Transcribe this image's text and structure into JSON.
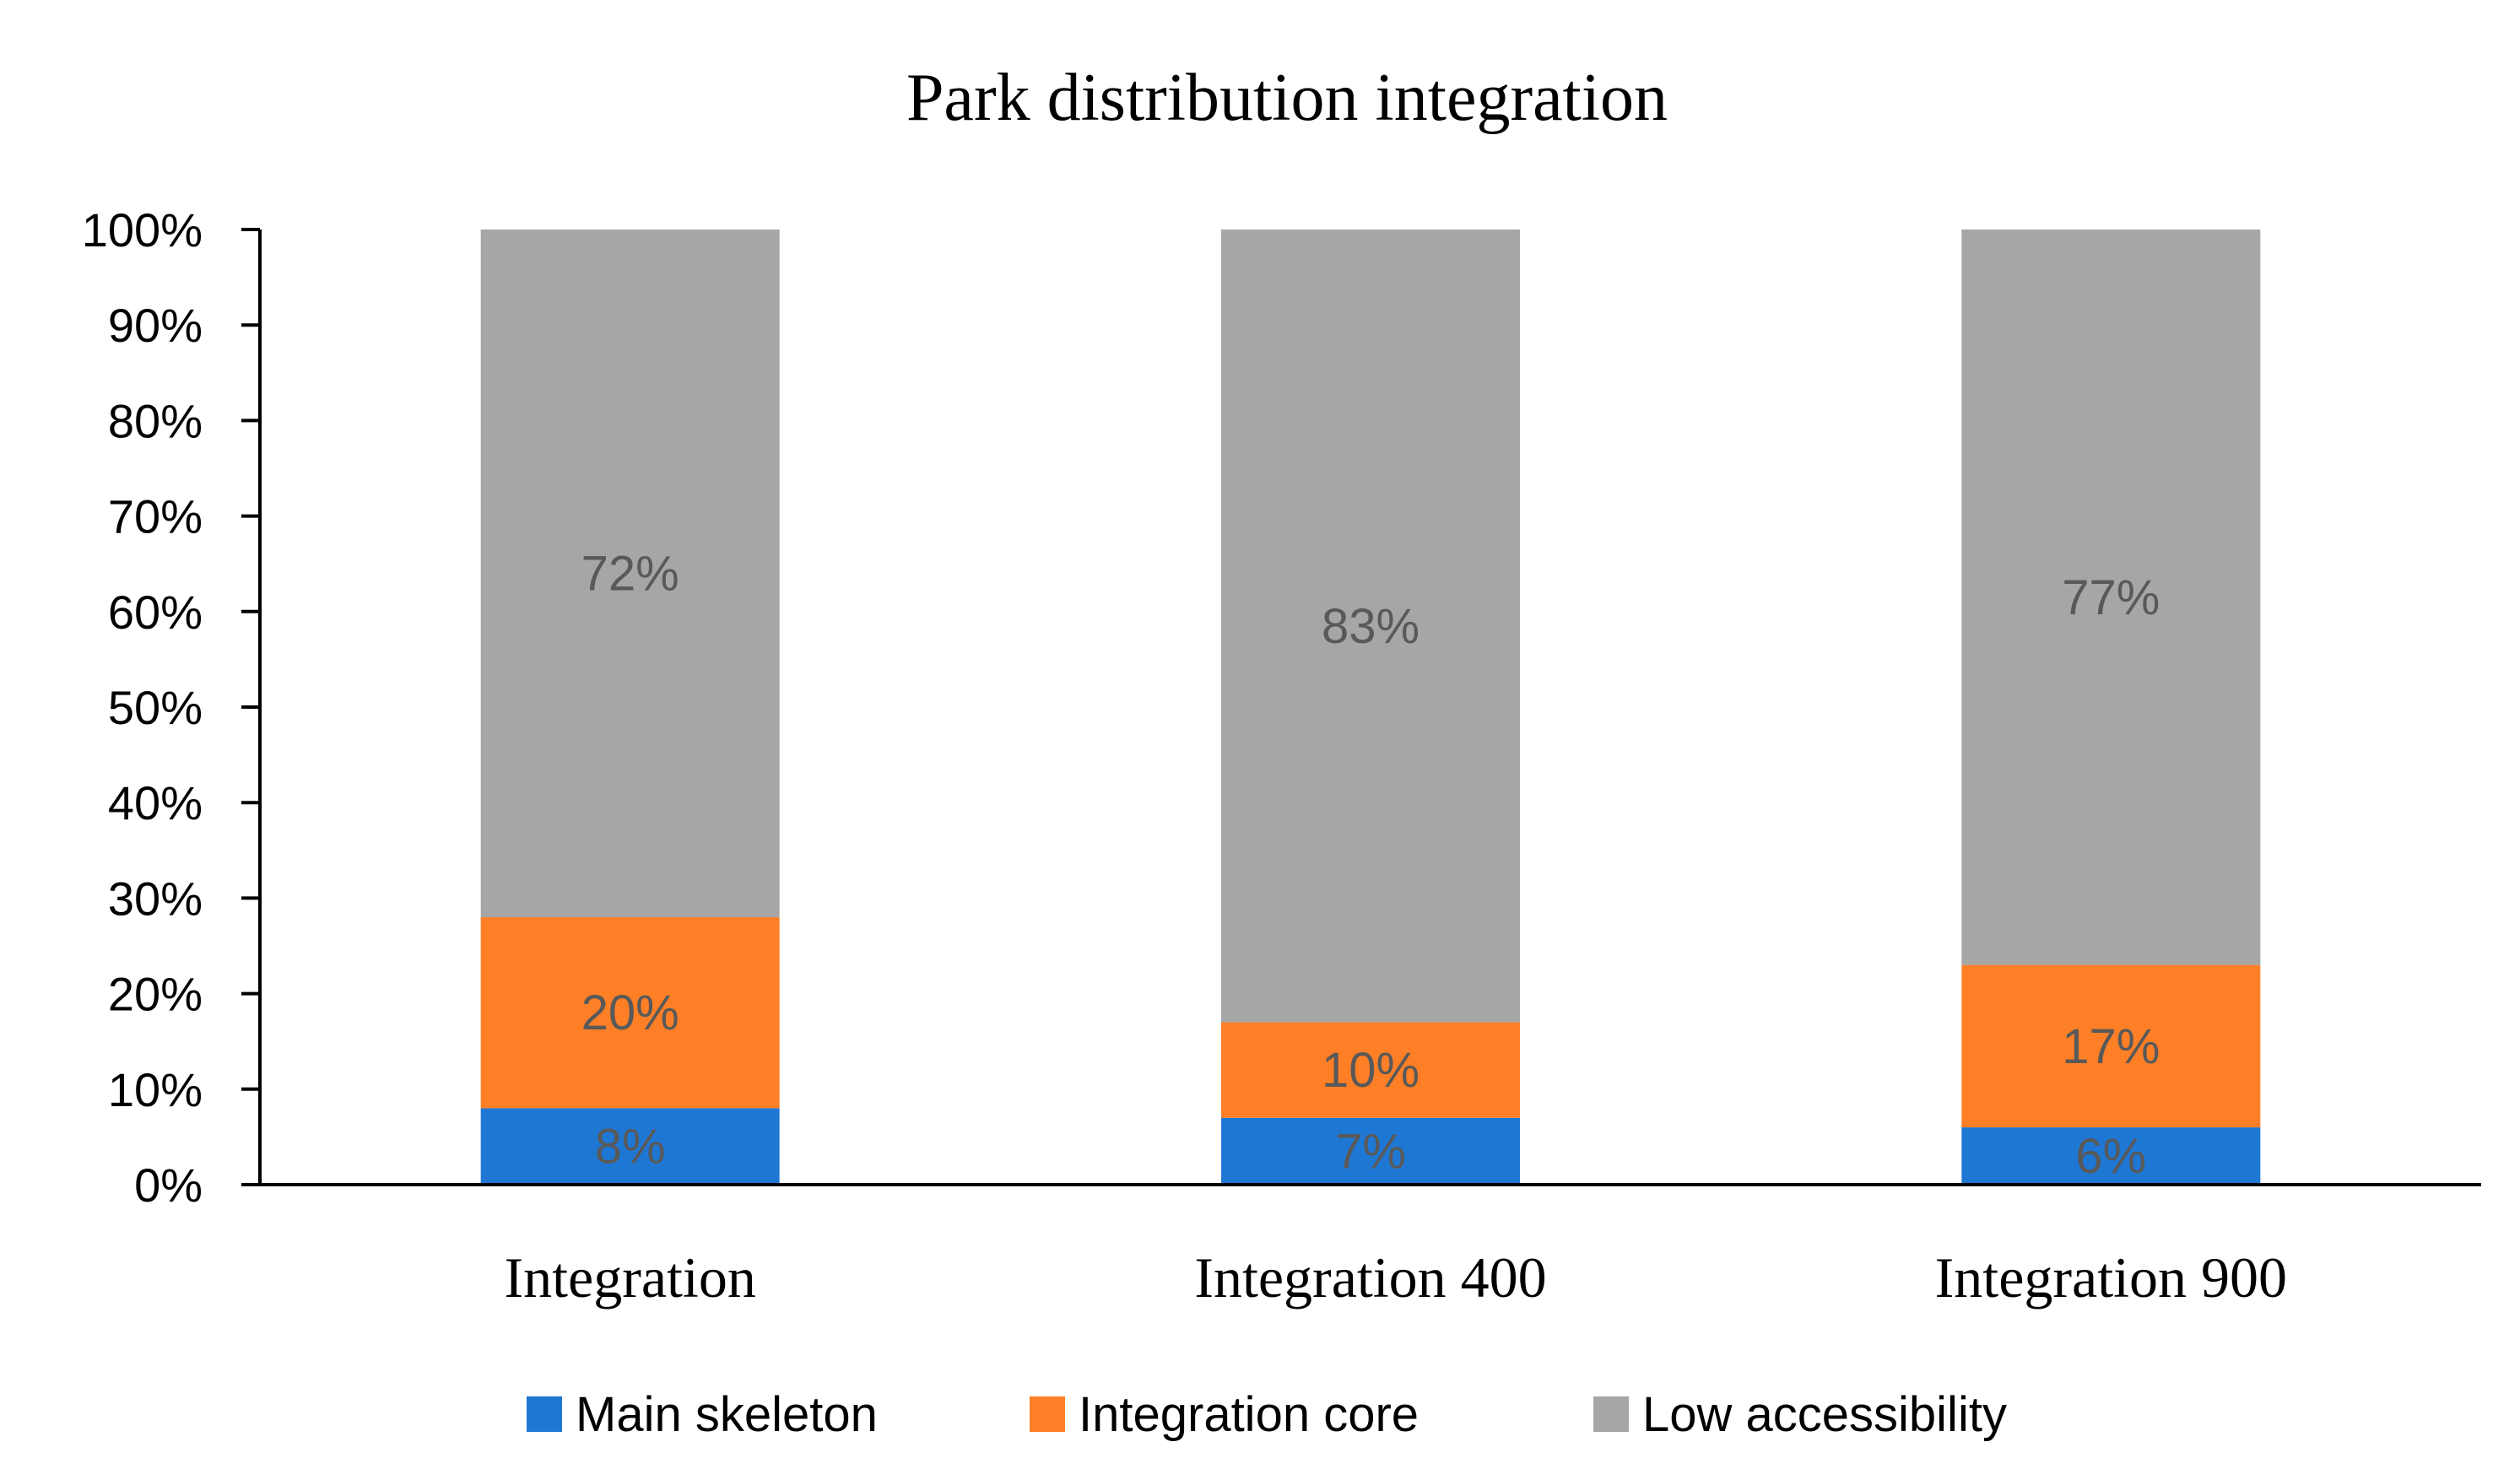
{
  "chart_data": {
    "type": "bar",
    "stacked": true,
    "title": "Park distribution integration",
    "xlabel": "",
    "ylabel": "",
    "ylim": [
      0,
      100
    ],
    "yticks": [
      "0%",
      "10%",
      "20%",
      "30%",
      "40%",
      "50%",
      "60%",
      "70%",
      "80%",
      "90%",
      "100%"
    ],
    "categories": [
      "Integration",
      "Integration 400",
      "Integration 900"
    ],
    "series": [
      {
        "name": "Main skeleton",
        "values": [
          8,
          7,
          6
        ],
        "labels": [
          "8%",
          "7%",
          "6%"
        ],
        "color": "#1f77d4"
      },
      {
        "name": "Integration core",
        "values": [
          20,
          10,
          17
        ],
        "labels": [
          "20%",
          "10%",
          "17%"
        ],
        "color": "#ff7f27"
      },
      {
        "name": "Low accessibility",
        "values": [
          72,
          83,
          77
        ],
        "labels": [
          "72%",
          "83%",
          "77%"
        ],
        "color": "#a6a6a6"
      }
    ],
    "grid": false,
    "legend_position": "bottom"
  }
}
